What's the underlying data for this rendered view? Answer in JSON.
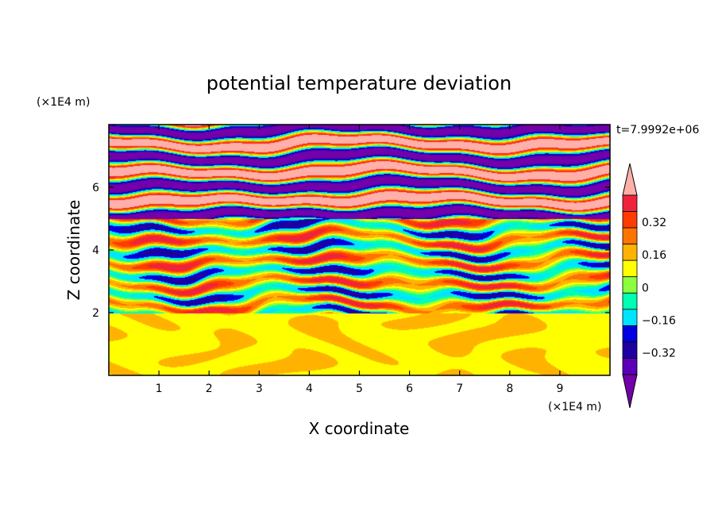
{
  "chart_data": {
    "type": "heatmap",
    "title": "potential temperature deviation",
    "xlabel": "X coordinate",
    "ylabel": "Z coordinate",
    "x_unit_label": "(×1E4 m)",
    "y_unit_label": "(×1E4 m)",
    "time_label": "t=7.9992e+06",
    "xlim": [
      0,
      10
    ],
    "ylim": [
      0,
      8
    ],
    "x_ticks": [
      "1",
      "2",
      "3",
      "4",
      "5",
      "6",
      "7",
      "8",
      "9"
    ],
    "y_ticks": [
      "2",
      "4",
      "6"
    ],
    "colorbar": {
      "levels": [
        -0.48,
        -0.4,
        -0.32,
        -0.24,
        -0.16,
        -0.08,
        0,
        0.08,
        0.16,
        0.24,
        0.32,
        0.4,
        0.48
      ],
      "tick_labels": [
        "0.32",
        "0.16",
        "0",
        "−0.16",
        "−0.32"
      ],
      "colors": [
        "#7300a8",
        "#5a00b8",
        "#1e00a0",
        "#0000e0",
        "#00e5ff",
        "#00ffb3",
        "#8cff3c",
        "#ffff00",
        "#ffb300",
        "#ff7300",
        "#ff3c00",
        "#f0233c",
        "#ffb0a8"
      ],
      "extend": "both"
    },
    "regions": [
      {
        "z_range": [
          0,
          2
        ],
        "description_values": [
          "0",
          "0.08"
        ]
      },
      {
        "z_range": [
          2,
          5
        ],
        "description_values": [
          "-0.32",
          "0.32"
        ]
      },
      {
        "z_range": [
          5,
          8
        ],
        "description_values": [
          "-0.48",
          "0.48"
        ]
      }
    ]
  }
}
